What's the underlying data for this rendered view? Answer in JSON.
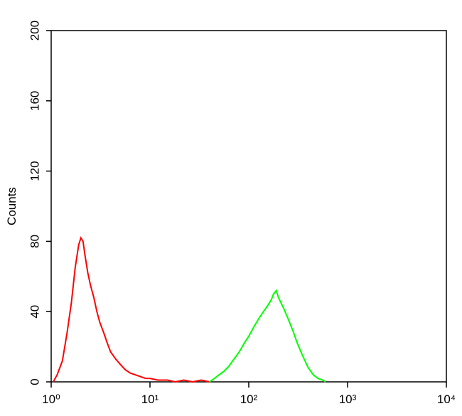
{
  "chart_data": {
    "type": "line",
    "y_label": "Counts",
    "x_scale": "log",
    "xlim": [
      1,
      10000
    ],
    "xticks": [
      {
        "value": 1,
        "label": "10⁰"
      },
      {
        "value": 10,
        "label": "10¹"
      },
      {
        "value": 100,
        "label": "10²"
      },
      {
        "value": 1000,
        "label": "10³"
      },
      {
        "value": 10000,
        "label": "10⁴"
      }
    ],
    "ylim": [
      0,
      200
    ],
    "yticks": [
      0,
      40,
      80,
      120,
      160,
      200
    ],
    "series": [
      {
        "color": "#ff0000",
        "x": [
          1.05,
          1.15,
          1.3,
          1.45,
          1.6,
          1.75,
          1.9,
          2.0,
          2.1,
          2.2,
          2.35,
          2.5,
          2.7,
          2.9,
          3.1,
          3.4,
          3.7,
          4.0,
          4.5,
          5.0,
          5.6,
          6.3,
          7.1,
          8.0,
          9.0,
          10,
          12,
          15,
          18,
          22,
          27,
          33,
          40
        ],
        "values": [
          0,
          4,
          12,
          28,
          45,
          65,
          78,
          82,
          80,
          72,
          62,
          55,
          48,
          40,
          34,
          28,
          22,
          17,
          13,
          10,
          7,
          5,
          4,
          3,
          2,
          2,
          1,
          1,
          0,
          1,
          0,
          1,
          0
        ]
      },
      {
        "color": "#00ff00",
        "x": [
          40,
          45,
          50,
          56,
          63,
          71,
          80,
          90,
          100,
          112,
          126,
          141,
          158,
          170,
          178,
          190,
          200,
          212,
          225,
          250,
          280,
          310,
          350,
          400,
          450,
          500,
          560,
          600
        ],
        "values": [
          0,
          2,
          4,
          6,
          9,
          13,
          17,
          22,
          26,
          31,
          36,
          40,
          44,
          47,
          50,
          52,
          48,
          45,
          42,
          36,
          29,
          22,
          15,
          8,
          4,
          2,
          1,
          0
        ]
      }
    ]
  }
}
